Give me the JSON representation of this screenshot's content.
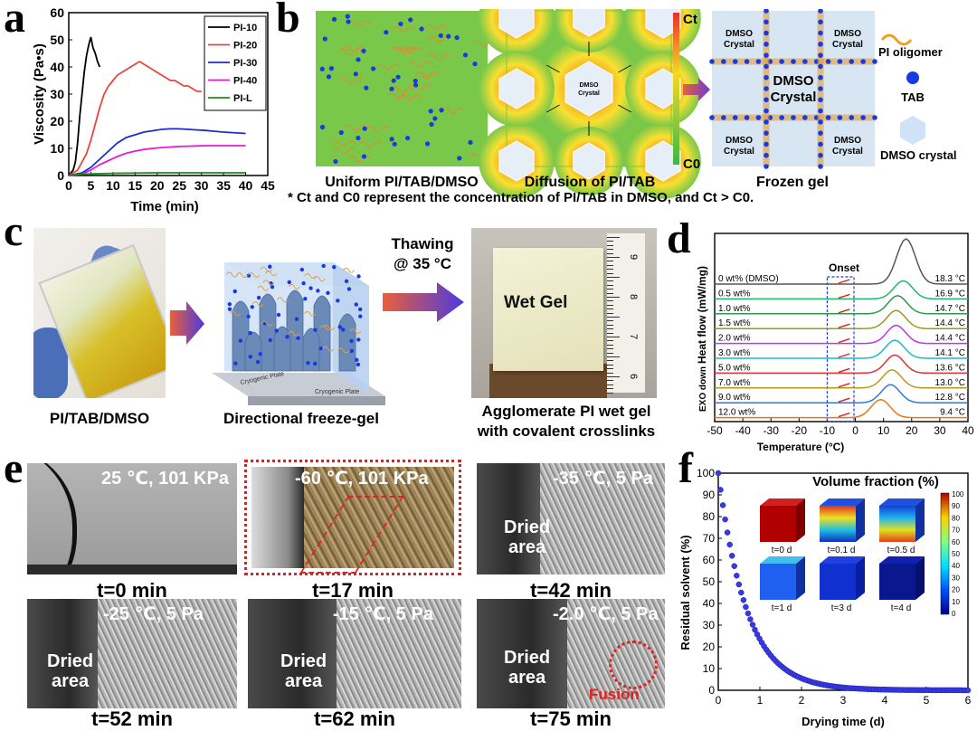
{
  "panels": {
    "a": "a",
    "b": "b",
    "c": "c",
    "d": "d",
    "e": "e",
    "f": "f"
  },
  "colors": {
    "pi10": "#000000",
    "pi20": "#e8463c",
    "pi30": "#1f2ccf",
    "pi40": "#e81ad8",
    "pil": "#1f8a1f",
    "arrow_grad_start": "#e8603a",
    "arrow_grad_end": "#4a3adf",
    "highlight_red": "#e0201e"
  },
  "chart_a": {
    "type": "line",
    "xlabel": "Time (min)",
    "ylabel": "Viscosity (Pa•s)",
    "xlim": [
      0,
      45
    ],
    "ylim": [
      0,
      60
    ],
    "xticks": [
      "0",
      "5",
      "10",
      "15",
      "20",
      "25",
      "30",
      "35",
      "40",
      "45"
    ],
    "yticks": [
      "0",
      "10",
      "20",
      "30",
      "40",
      "50",
      "60"
    ],
    "legend": [
      "PI-10",
      "PI-20",
      "PI-30",
      "PI-40",
      "PI-L"
    ],
    "series": [
      {
        "name": "PI-10",
        "x": [
          0,
          1,
          1.5,
          2,
          2.5,
          3,
          3.5,
          4,
          4.5,
          5,
          5.5,
          6,
          6.5,
          7
        ],
        "y": [
          0,
          2,
          5,
          12,
          22,
          30,
          38,
          44,
          48,
          51,
          47,
          45,
          42,
          40
        ]
      },
      {
        "name": "PI-20",
        "x": [
          0,
          2,
          4,
          5,
          6,
          7,
          8,
          9,
          10,
          11,
          12,
          13,
          14,
          15,
          16,
          17,
          18,
          19,
          20,
          21,
          22,
          23,
          24,
          25,
          26,
          27,
          28,
          29,
          30
        ],
        "y": [
          0,
          2,
          8,
          13,
          19,
          25,
          30,
          33,
          35,
          37,
          38,
          39,
          40,
          41,
          42,
          41,
          40,
          39,
          38,
          37,
          36,
          35,
          35,
          34,
          33,
          33,
          32,
          31,
          31
        ]
      },
      {
        "name": "PI-30",
        "x": [
          0,
          3,
          5,
          7,
          9,
          11,
          13,
          15,
          17,
          19,
          21,
          23,
          25,
          27,
          29,
          31,
          33,
          35,
          37,
          40
        ],
        "y": [
          0,
          1,
          3,
          6,
          9,
          12,
          14,
          15,
          16,
          16.5,
          17,
          17.2,
          17.2,
          17,
          16.8,
          16.6,
          16.3,
          16,
          15.8,
          15.5
        ]
      },
      {
        "name": "PI-40",
        "x": [
          0,
          3,
          5,
          7,
          9,
          11,
          13,
          15,
          17,
          19,
          21,
          23,
          25,
          27,
          29,
          31,
          33,
          35,
          37,
          40
        ],
        "y": [
          0,
          0.5,
          2,
          4,
          5.5,
          7,
          8.2,
          9,
          9.6,
          10,
          10.3,
          10.5,
          10.7,
          10.8,
          10.9,
          11,
          11,
          11,
          11,
          11
        ]
      },
      {
        "name": "PI-L",
        "x": [
          0,
          5,
          10,
          20,
          30,
          40
        ],
        "y": [
          0.2,
          0.6,
          0.8,
          1,
          1,
          1
        ]
      }
    ]
  },
  "panel_b": {
    "caption_1": "Uniform PI/TAB/DMSO",
    "caption_2": "Diffusion of PI/TAB",
    "caption_3": "Frozen gel",
    "ct_label": "Ct",
    "c0_label": "C0",
    "crystal_small": "DMSO Crystal",
    "crystal_big_1": "DMSO",
    "crystal_big_2": "Crystal",
    "legend_oligomer": "PI oligomer",
    "legend_tab": "TAB",
    "legend_crystal": "DMSO crystal",
    "footnote_star": "*",
    "footnote": "Ct and C0 represent the concentration of PI/TAB in DMSO, and Ct > C0."
  },
  "panel_c": {
    "caption_1": "PI/TAB/DMSO",
    "caption_2": "Directional freeze-gel",
    "caption_3_line1": "Agglomerate PI wet gel",
    "caption_3_line2": "with covalent crosslinks",
    "arrow_label_1": "Thawing",
    "arrow_label_2": "@ 35 °C",
    "wet_gel": "Wet Gel",
    "plate_1": "Cryogenic Plate",
    "plate_2": "Cryogenic Plate",
    "ruler_numbers": [
      "9",
      "8",
      "7",
      "6"
    ]
  },
  "chart_d": {
    "type": "line",
    "xlabel": "Temperature (°C)",
    "ylabel": "Heat flow (mW/mg)",
    "ylabel2": "EXO down",
    "onset_label": "Onset",
    "xlim": [
      -50,
      40
    ],
    "xticks": [
      "-50",
      "-40",
      "-30",
      "-20",
      "-10",
      "0",
      "10",
      "20",
      "30",
      "40"
    ],
    "series": [
      {
        "name": "0 wt% (DMSO)",
        "onset": "18.3 °C",
        "peak_x": 18,
        "color": "#555555"
      },
      {
        "name": "0.5 wt%",
        "onset": "16.9 °C",
        "peak_x": 17,
        "color": "#1fb86a"
      },
      {
        "name": "1.0 wt%",
        "onset": "14.7 °C",
        "peak_x": 15,
        "color": "#2a9a4a"
      },
      {
        "name": "1.5 wt%",
        "onset": "14.4 °C",
        "peak_x": 14.5,
        "color": "#9a9a1a"
      },
      {
        "name": "2.0 wt%",
        "onset": "14.4 °C",
        "peak_x": 14.5,
        "color": "#b83ae0"
      },
      {
        "name": "3.0 wt%",
        "onset": "14.1 °C",
        "peak_x": 14,
        "color": "#1fb8c8"
      },
      {
        "name": "5.0 wt%",
        "onset": "13.6 °C",
        "peak_x": 14,
        "color": "#e0303a"
      },
      {
        "name": "7.0 wt%",
        "onset": "13.0 °C",
        "peak_x": 13,
        "color": "#b89a1a"
      },
      {
        "name": "9.0 wt%",
        "onset": "12.8 °C",
        "peak_x": 12.5,
        "color": "#2a7ad8"
      },
      {
        "name": "12.0 wt%",
        "onset": "9.4 °C",
        "peak_x": 9,
        "color": "#e8761a"
      }
    ]
  },
  "panel_e": {
    "photos": [
      {
        "cond": "25 ℃, 101 KPa",
        "time": "t=0 min"
      },
      {
        "cond": "-60 ℃, 101 KPa",
        "time": "t=17 min"
      },
      {
        "cond": "-35 ℃, 5 Pa",
        "time": "t=42 min",
        "area_1": "Dried",
        "area_2": "area"
      },
      {
        "cond": "-25 ℃, 5 Pa",
        "time": "t=52 min",
        "area_1": "Dried",
        "area_2": "area"
      },
      {
        "cond": "-15 ℃, 5 Pa",
        "time": "t=62 min",
        "area_1": "Dried",
        "area_2": "area"
      },
      {
        "cond": "-2.0 ℃, 5 Pa",
        "time": "t=75 min",
        "area_1": "Dried",
        "area_2": "area",
        "fusion": "Fusion"
      }
    ]
  },
  "chart_f": {
    "type": "scatter",
    "xlabel": "Drying time (d)",
    "ylabel": "Residual solvent (%)",
    "xlim": [
      0,
      6
    ],
    "ylim": [
      0,
      100
    ],
    "xticks": [
      "0",
      "1",
      "2",
      "3",
      "4",
      "5",
      "6"
    ],
    "yticks": [
      "0",
      "10",
      "20",
      "30",
      "40",
      "50",
      "60",
      "70",
      "80",
      "90",
      "100"
    ],
    "decay_k": 1.45,
    "points_n": 110,
    "inset_title": "Volume fraction (%)",
    "colorbar_ticks": [
      "100",
      "90",
      "80",
      "70",
      "60",
      "50",
      "40",
      "30",
      "20",
      "10",
      "0"
    ],
    "insets": [
      "t=0 d",
      "t=0.1 d",
      "t=0.5 d",
      "t=1 d",
      "t=3 d",
      "t=4 d"
    ]
  }
}
